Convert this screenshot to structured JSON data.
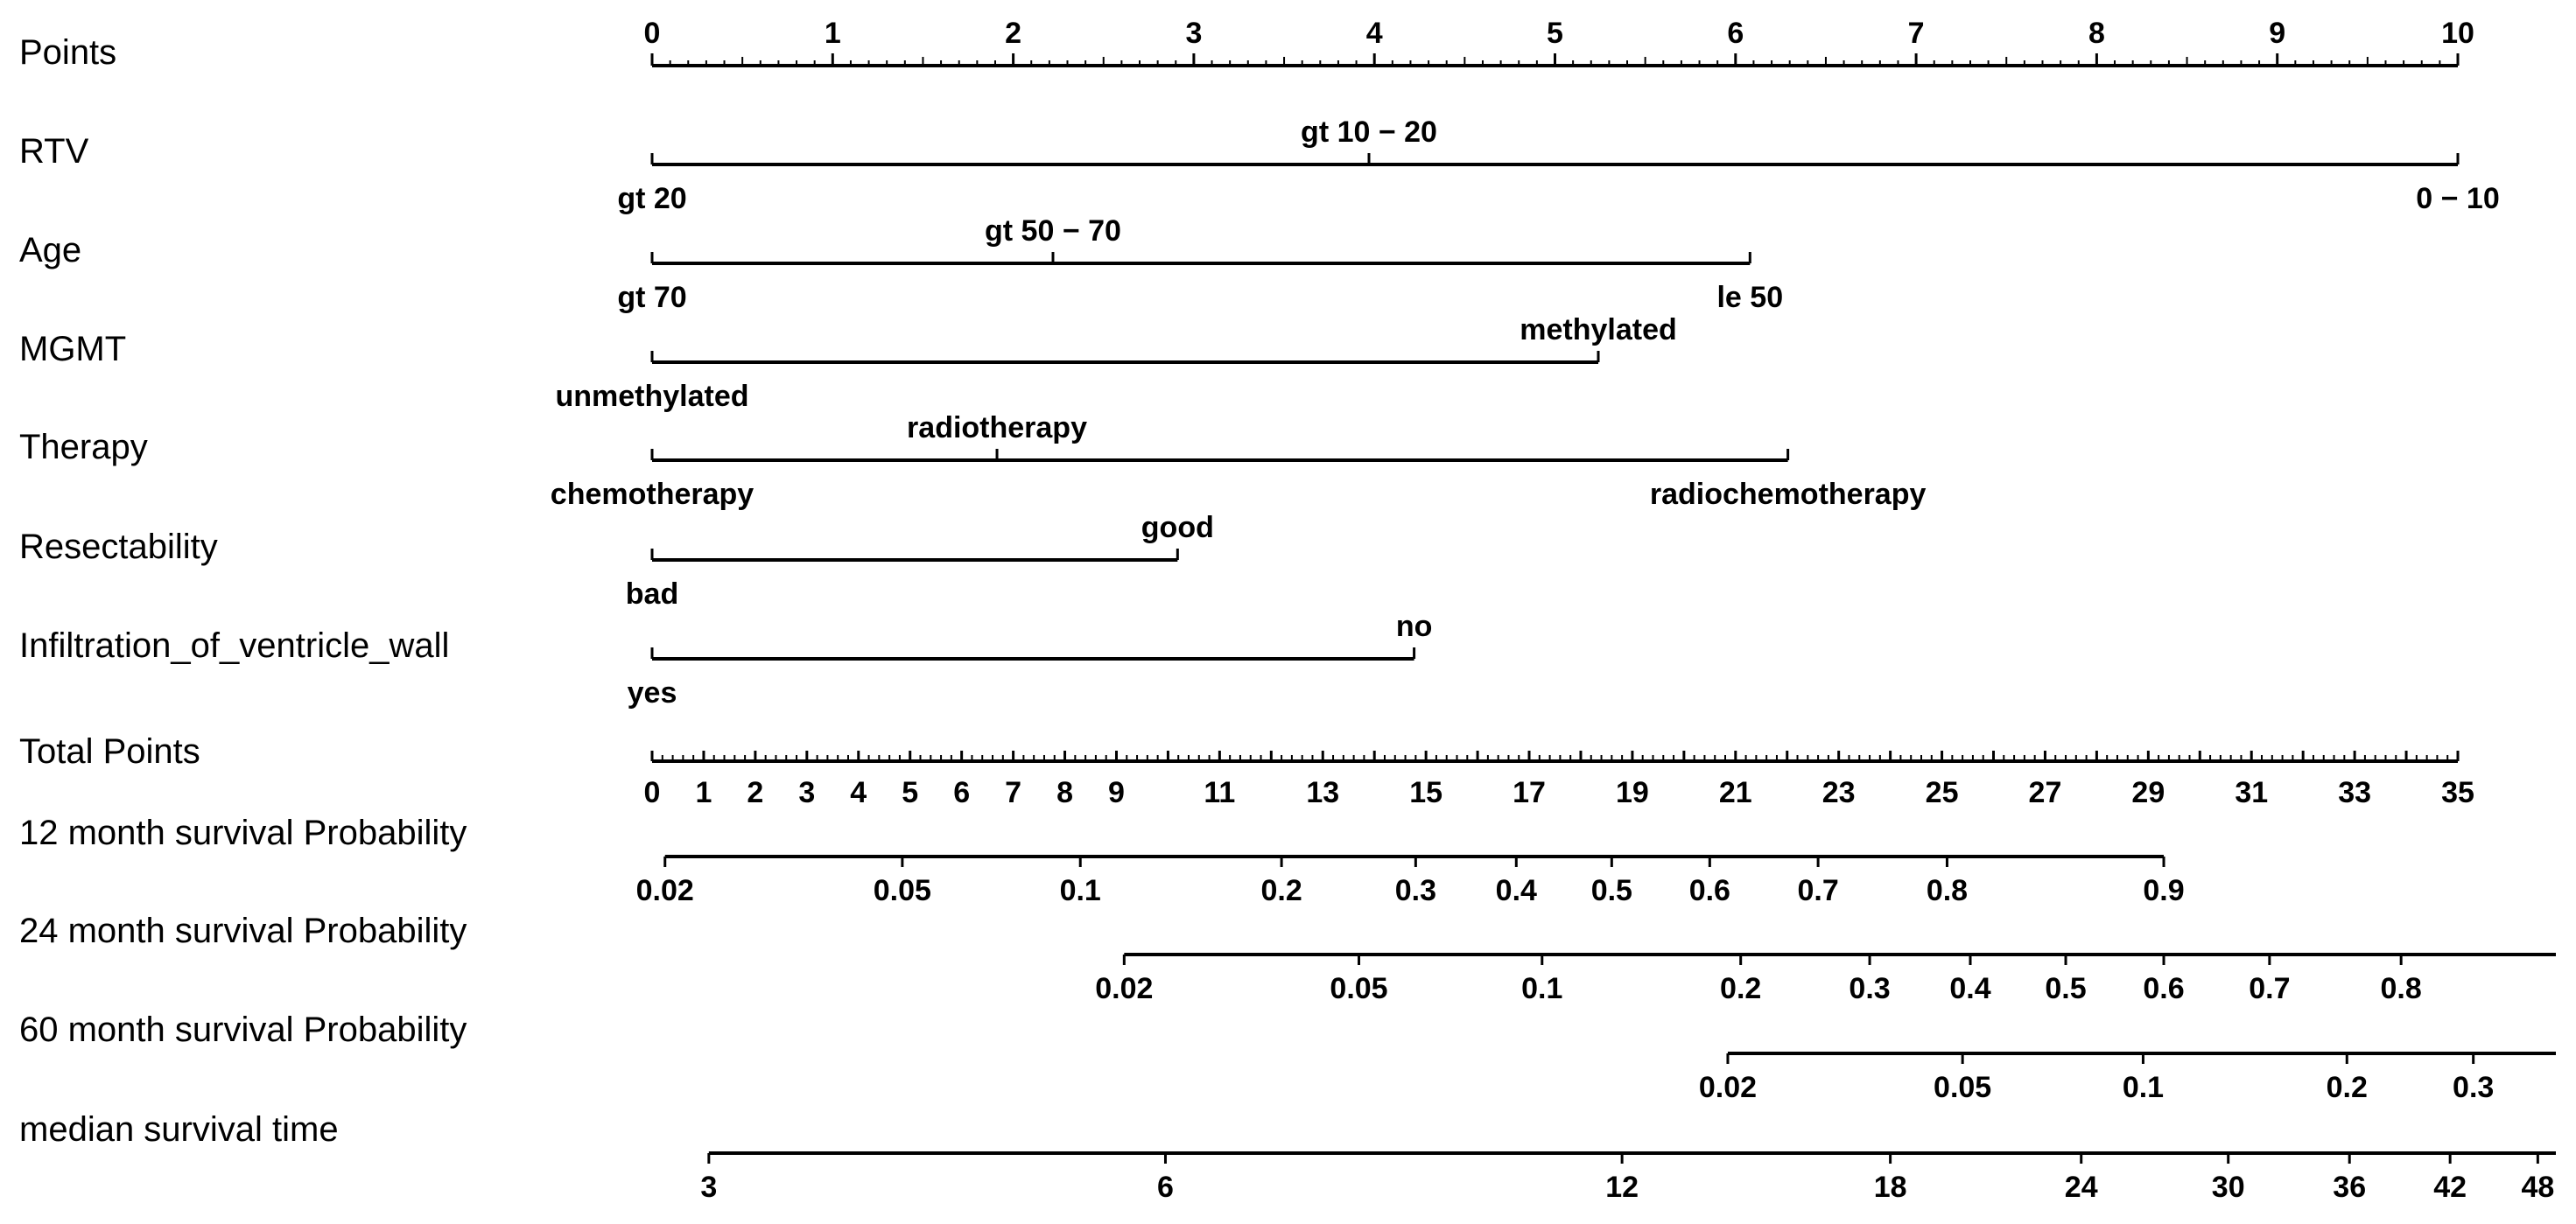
{
  "chart_data": {
    "type": "nomogram",
    "points_scale": {
      "label": "Points",
      "min": 0,
      "max": 10,
      "ticks": [
        "0",
        "1",
        "2",
        "3",
        "4",
        "5",
        "6",
        "7",
        "8",
        "9",
        "10"
      ]
    },
    "predictors": [
      {
        "label": "RTV",
        "levels": [
          {
            "name": "gt 20",
            "points": 0,
            "label_side": "below"
          },
          {
            "name": "gt 10 − 20",
            "points": 3.97,
            "label_side": "above"
          },
          {
            "name": "0 − 10",
            "points": 10,
            "label_side": "below"
          }
        ]
      },
      {
        "label": "Age",
        "levels": [
          {
            "name": "gt 70",
            "points": 0,
            "label_side": "below"
          },
          {
            "name": "gt 50 − 70",
            "points": 2.22,
            "label_side": "above"
          },
          {
            "name": "le 50",
            "points": 6.08,
            "label_side": "below"
          }
        ]
      },
      {
        "label": "MGMT",
        "levels": [
          {
            "name": "unmethylated",
            "points": 0,
            "label_side": "below"
          },
          {
            "name": "methylated",
            "points": 5.24,
            "label_side": "above"
          }
        ]
      },
      {
        "label": "Therapy",
        "levels": [
          {
            "name": "chemotherapy",
            "points": 0,
            "label_side": "below"
          },
          {
            "name": "radiotherapy",
            "points": 1.91,
            "label_side": "above"
          },
          {
            "name": "radiochemotherapy",
            "points": 6.29,
            "label_side": "below"
          }
        ]
      },
      {
        "label": "Resectability",
        "levels": [
          {
            "name": "bad",
            "points": 0,
            "label_side": "below"
          },
          {
            "name": "good",
            "points": 2.91,
            "label_side": "above"
          }
        ]
      },
      {
        "label": "Infiltration_of_ventricle_wall",
        "levels": [
          {
            "name": "yes",
            "points": 0,
            "label_side": "below"
          },
          {
            "name": "no",
            "points": 4.22,
            "label_side": "above"
          }
        ]
      }
    ],
    "total_points_scale": {
      "label": "Total Points",
      "min": 0,
      "max": 35,
      "ticks": [
        "0",
        "1",
        "2",
        "3",
        "4",
        "5",
        "6",
        "7",
        "8",
        "9",
        "11",
        "13",
        "15",
        "17",
        "19",
        "21",
        "23",
        "25",
        "27",
        "29",
        "31",
        "33",
        "35"
      ]
    },
    "outcome_axes": [
      {
        "label": "12 month survival Probability",
        "line_total_points": [
          0.25,
          29.3
        ],
        "ticks": [
          {
            "label": "0.02",
            "total_points": 0.25
          },
          {
            "label": "0.05",
            "total_points": 4.85
          },
          {
            "label": "0.1",
            "total_points": 8.3
          },
          {
            "label": "0.2",
            "total_points": 12.2
          },
          {
            "label": "0.3",
            "total_points": 14.8
          },
          {
            "label": "0.4",
            "total_points": 16.75
          },
          {
            "label": "0.5",
            "total_points": 18.6
          },
          {
            "label": "0.6",
            "total_points": 20.5
          },
          {
            "label": "0.7",
            "total_points": 22.6
          },
          {
            "label": "0.8",
            "total_points": 25.1
          },
          {
            "label": "0.9",
            "total_points": 29.3
          }
        ]
      },
      {
        "label": "24 month survival Probability",
        "line_total_points": [
          9.15,
          37
        ],
        "ticks": [
          {
            "label": "0.02",
            "total_points": 9.15
          },
          {
            "label": "0.05",
            "total_points": 13.7
          },
          {
            "label": "0.1",
            "total_points": 17.25
          },
          {
            "label": "0.2",
            "total_points": 21.1
          },
          {
            "label": "0.3",
            "total_points": 23.6
          },
          {
            "label": "0.4",
            "total_points": 25.55
          },
          {
            "label": "0.5",
            "total_points": 27.4
          },
          {
            "label": "0.6",
            "total_points": 29.3
          },
          {
            "label": "0.7",
            "total_points": 31.35
          },
          {
            "label": "0.8",
            "total_points": 33.9
          }
        ]
      },
      {
        "label": "60 month survival Probability",
        "line_total_points": [
          20.85,
          37
        ],
        "ticks": [
          {
            "label": "0.02",
            "total_points": 20.85
          },
          {
            "label": "0.05",
            "total_points": 25.4
          },
          {
            "label": "0.1",
            "total_points": 28.9
          },
          {
            "label": "0.2",
            "total_points": 32.85
          },
          {
            "label": "0.3",
            "total_points": 35.3
          }
        ]
      },
      {
        "label": "median survival time",
        "line_total_points": [
          1.1,
          37
        ],
        "ticks": [
          {
            "label": "3",
            "total_points": 1.1
          },
          {
            "label": "6",
            "total_points": 9.95
          },
          {
            "label": "12",
            "total_points": 18.8
          },
          {
            "label": "18",
            "total_points": 24.0
          },
          {
            "label": "24",
            "total_points": 27.7
          },
          {
            "label": "30",
            "total_points": 30.55
          },
          {
            "label": "36",
            "total_points": 32.9
          },
          {
            "label": "42",
            "total_points": 34.85
          },
          {
            "label": "48",
            "total_points": 36.55
          }
        ]
      }
    ]
  }
}
